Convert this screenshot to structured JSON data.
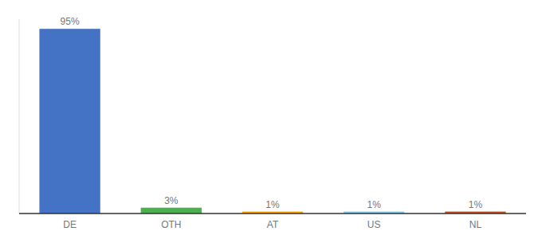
{
  "chart_data": {
    "type": "bar",
    "categories": [
      "DE",
      "OTH",
      "AT",
      "US",
      "NL"
    ],
    "values": [
      95,
      3,
      1,
      1,
      1
    ],
    "value_labels": [
      "95%",
      "3%",
      "1%",
      "1%",
      "1%"
    ],
    "colors": [
      "#4472c4",
      "#4caf50",
      "#ffa500",
      "#87ceeb",
      "#c0522a"
    ],
    "ylim": [
      0,
      100
    ],
    "data_labels": true,
    "tick_labels": "x"
  }
}
